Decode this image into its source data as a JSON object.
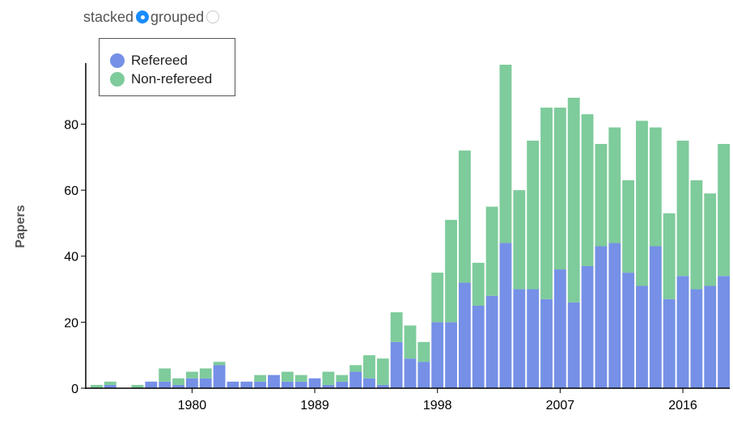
{
  "controls": {
    "stacked_label": "stacked",
    "grouped_label": "grouped",
    "selected": "stacked"
  },
  "legend": {
    "items": [
      {
        "label": "Refereed",
        "color": "#7590e6"
      },
      {
        "label": "Non-refereed",
        "color": "#7ecb9b"
      }
    ]
  },
  "chart_data": {
    "type": "bar",
    "mode": "stacked",
    "ylabel": "Papers",
    "xlabel": "",
    "ylim": [
      0,
      98
    ],
    "yticks": [
      0,
      20,
      40,
      60,
      80
    ],
    "xticks": [
      "1980",
      "1989",
      "1998",
      "2007",
      "2016"
    ],
    "categories": [
      1973,
      1974,
      1975,
      1976,
      1977,
      1978,
      1979,
      1980,
      1981,
      1982,
      1983,
      1984,
      1985,
      1986,
      1987,
      1988,
      1989,
      1990,
      1991,
      1992,
      1993,
      1994,
      1995,
      1996,
      1997,
      1998,
      1999,
      2000,
      2001,
      2002,
      2003,
      2004,
      2005,
      2006,
      2007,
      2008,
      2009,
      2010,
      2011,
      2012,
      2013,
      2014,
      2015,
      2016,
      2017,
      2018,
      2019
    ],
    "series": [
      {
        "name": "Refereed",
        "color": "#7590e6",
        "values": [
          0,
          1,
          0,
          0,
          2,
          2,
          1,
          3,
          3,
          7,
          2,
          2,
          2,
          4,
          2,
          2,
          3,
          1,
          2,
          5,
          3,
          1,
          14,
          9,
          8,
          20,
          20,
          32,
          25,
          28,
          44,
          30,
          30,
          27,
          36,
          26,
          37,
          43,
          44,
          35,
          31,
          43,
          27,
          34,
          30,
          31,
          34
        ]
      },
      {
        "name": "Non-refereed",
        "color": "#7ecb9b",
        "values": [
          1,
          1,
          0,
          1,
          0,
          4,
          2,
          2,
          3,
          1,
          0,
          0,
          2,
          0,
          3,
          2,
          0,
          4,
          2,
          2,
          7,
          8,
          9,
          10,
          6,
          15,
          31,
          40,
          13,
          27,
          54,
          30,
          45,
          58,
          49,
          62,
          46,
          31,
          35,
          28,
          50,
          36,
          26,
          41,
          33,
          28,
          40
        ]
      }
    ]
  }
}
